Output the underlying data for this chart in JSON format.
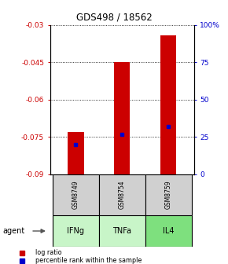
{
  "title": "GDS498 / 18562",
  "samples": [
    "GSM8749",
    "GSM8754",
    "GSM8759"
  ],
  "agents": [
    "IFNg",
    "TNFa",
    "IL4"
  ],
  "log_ratios": [
    -0.073,
    -0.045,
    -0.034
  ],
  "percentile_ranks": [
    20,
    27,
    32
  ],
  "bar_baseline": -0.09,
  "ylim_left": [
    -0.09,
    -0.03
  ],
  "ylim_right": [
    0,
    100
  ],
  "yticks_left": [
    -0.09,
    -0.075,
    -0.06,
    -0.045,
    -0.03
  ],
  "ytick_labels_left": [
    "-0.09",
    "-0.075",
    "-0.06",
    "-0.045",
    "-0.03"
  ],
  "yticks_right": [
    0,
    25,
    50,
    75,
    100
  ],
  "ytick_labels_right": [
    "0",
    "25",
    "50",
    "75",
    "100%"
  ],
  "bar_color": "#cc0000",
  "dot_color": "#0000cc",
  "agent_colors": [
    "#c8f5c8",
    "#c8f5c8",
    "#7ee07e"
  ],
  "sample_bg_color": "#d0d0d0",
  "left_axis_color": "#cc0000",
  "right_axis_color": "#0000cc",
  "legend_log_ratio": "log ratio",
  "legend_percentile": "percentile rank within the sample",
  "agent_label": "agent"
}
